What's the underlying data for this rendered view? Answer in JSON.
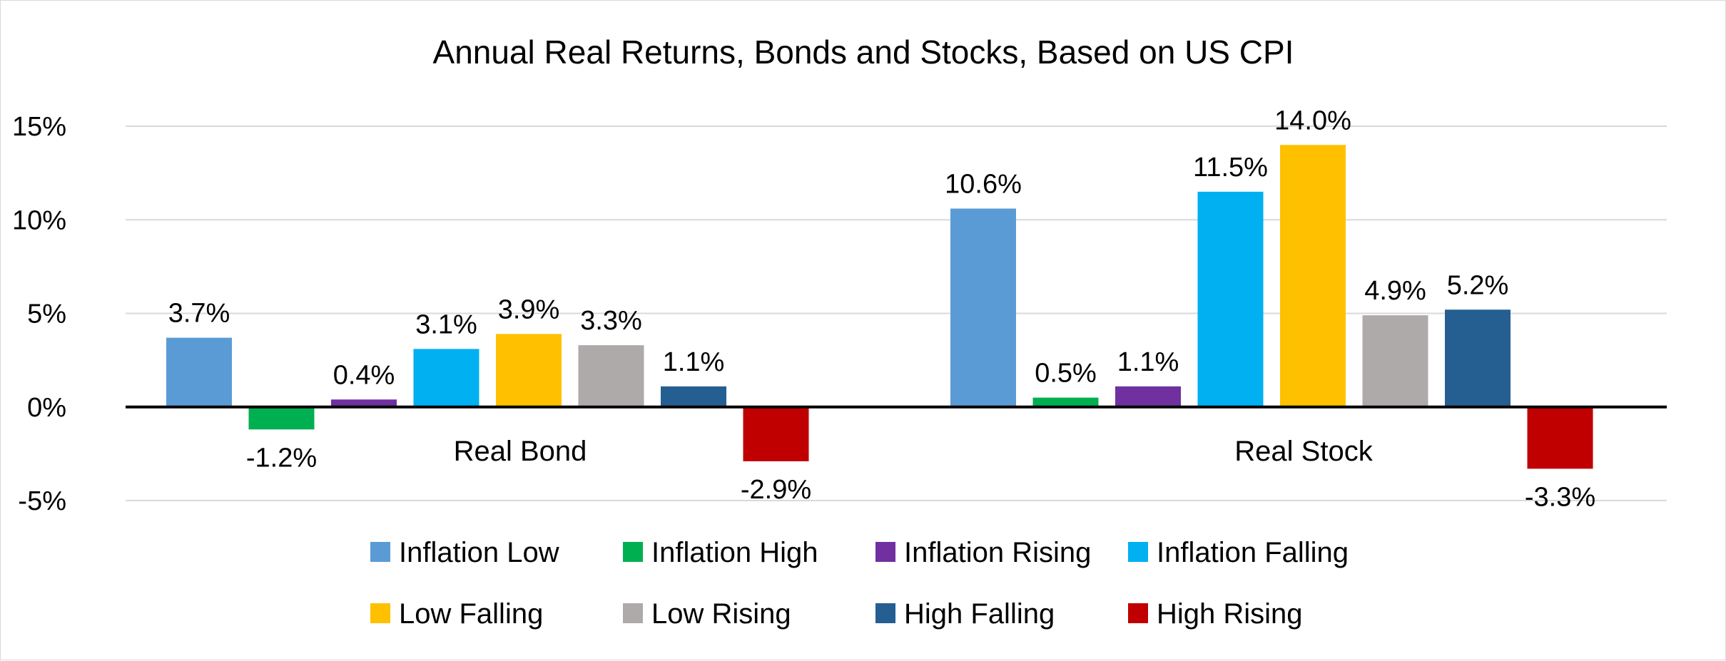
{
  "chart_data": {
    "type": "bar",
    "title": "Annual Real Returns, Bonds and Stocks, Based on US CPI",
    "xlabel": "",
    "ylabel": "",
    "categories": [
      "Real Bond",
      "Real Stock"
    ],
    "ylim": [
      -5,
      15
    ],
    "yticks": [
      15,
      10,
      5,
      0,
      -5
    ],
    "ytick_labels": [
      "15%",
      "10%",
      "5%",
      "0%",
      "-5%"
    ],
    "grid": true,
    "legend_position": "bottom",
    "series": [
      {
        "name": "Inflation Low",
        "color": "#5B9BD5",
        "values": [
          3.7,
          10.6
        ],
        "labels": [
          "3.7%",
          "10.6%"
        ]
      },
      {
        "name": "Inflation High",
        "color": "#00B050",
        "values": [
          -1.2,
          0.5
        ],
        "labels": [
          "-1.2%",
          "0.5%"
        ]
      },
      {
        "name": "Inflation Rising",
        "color": "#7030A0",
        "values": [
          0.4,
          1.1
        ],
        "labels": [
          "0.4%",
          "1.1%"
        ]
      },
      {
        "name": "Inflation Falling",
        "color": "#00B0F0",
        "values": [
          3.1,
          11.5
        ],
        "labels": [
          "3.1%",
          "11.5%"
        ]
      },
      {
        "name": "Low Falling",
        "color": "#FFC000",
        "values": [
          3.9,
          14.0
        ],
        "labels": [
          "3.9%",
          "14.0%"
        ]
      },
      {
        "name": "Low Rising",
        "color": "#AEAAAA",
        "values": [
          3.3,
          4.9
        ],
        "labels": [
          "3.3%",
          "4.9%"
        ]
      },
      {
        "name": "High Falling",
        "color": "#255E91",
        "values": [
          1.1,
          5.2
        ],
        "labels": [
          "1.1%",
          "5.2%"
        ]
      },
      {
        "name": "High Rising",
        "color": "#C00000",
        "values": [
          -2.9,
          -3.3
        ],
        "labels": [
          "-2.9%",
          "-3.3%"
        ]
      }
    ]
  }
}
